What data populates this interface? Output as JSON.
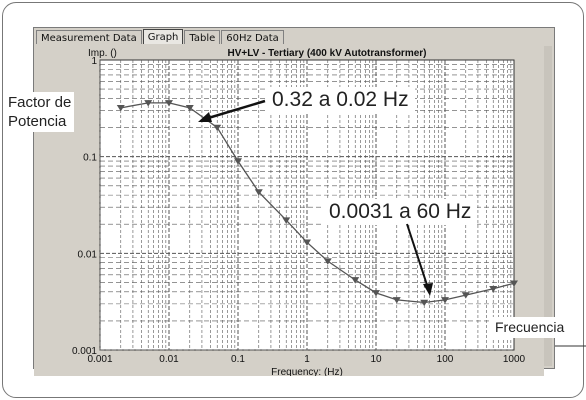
{
  "window": {
    "tabs": [
      {
        "label": "Measurement Data",
        "active": false
      },
      {
        "label": "Graph",
        "active": true
      },
      {
        "label": "Table",
        "active": false
      },
      {
        "label": "60Hz Data",
        "active": false
      }
    ]
  },
  "annotations": {
    "factor_line1": "Factor de",
    "factor_line2": "Potencia",
    "callout_low": "0.32 a 0.02 Hz",
    "callout_high": "0.0031 a 60 Hz",
    "frequency_label": "Frecuencia"
  },
  "colors": {
    "plot_background": "#ffffff",
    "grid": "#555555",
    "series": "#555555",
    "window": "#d4d0c8"
  },
  "chart_data": {
    "type": "line",
    "title": "HV+LV - Tertiary (400 kV Autotransformer)",
    "ylabel": "Imp. ()",
    "xlabel": "Frequency: (Hz)",
    "x_scale": "log",
    "y_scale": "log",
    "xlim": [
      0.001,
      1000
    ],
    "ylim": [
      0.001,
      1
    ],
    "x_ticks": [
      "0.001",
      "0.01",
      "0.1",
      "1",
      "10",
      "100",
      "1000"
    ],
    "y_ticks": [
      "1",
      "0.1",
      "0.01",
      "0.001"
    ],
    "grid": true,
    "series": [
      {
        "marker": "triangle-down",
        "x": [
          0.002,
          0.005,
          0.01,
          0.02,
          0.05,
          0.1,
          0.2,
          0.5,
          1,
          2,
          5,
          10,
          20,
          50,
          100,
          200,
          500,
          1000
        ],
        "y": [
          0.32,
          0.36,
          0.36,
          0.32,
          0.2,
          0.09,
          0.043,
          0.022,
          0.013,
          0.0083,
          0.0053,
          0.0039,
          0.0033,
          0.0031,
          0.0033,
          0.0037,
          0.0043,
          0.0049
        ]
      }
    ]
  }
}
